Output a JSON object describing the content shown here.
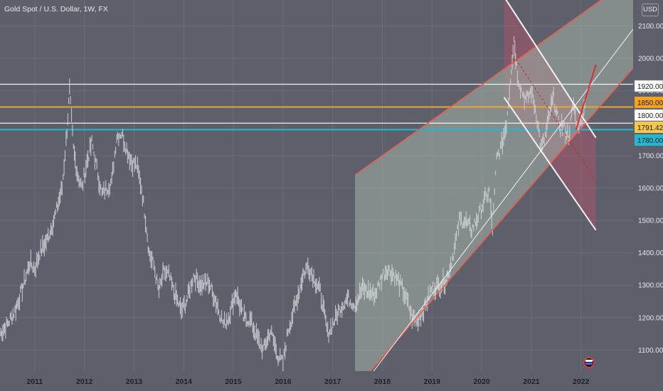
{
  "header": {
    "title": "Gold Spot / U.S. Dollar, 1W, FX",
    "currency": "USD"
  },
  "colors": {
    "background": "#5d606b",
    "axis_panel": "#5d606b",
    "candles": "#cfd1d6",
    "orange_level": "#f7a21b",
    "cyan_level": "#22b8cf",
    "white_level": "#f2f2f2",
    "channel_red": "#f05a4a",
    "channel_fill": "#a4b1a7",
    "wedge_fill": "#a8546a"
  },
  "chart_data": {
    "type": "line",
    "title": "Gold Spot / U.S. Dollar, 1W, FX",
    "x_ticks": [
      "2011",
      "2012",
      "2013",
      "2014",
      "2015",
      "2016",
      "2017",
      "2018",
      "2019",
      "2020",
      "2021",
      "2022"
    ],
    "y_ticks": [
      "1100.00",
      "1200.00",
      "1300.00",
      "1400.00",
      "1500.00",
      "1600.00",
      "1700.00",
      "1900.00",
      "2000.00",
      "2100.00"
    ],
    "xlim": [
      2010.3,
      2023.05
    ],
    "ylim": [
      1035,
      2180
    ],
    "grid": true,
    "series": [
      {
        "x": [
          2010.3,
          2010.45,
          2010.6,
          2010.75,
          2010.9,
          2011.0,
          2011.1,
          2011.25,
          2011.4,
          2011.55,
          2011.65,
          2011.7,
          2011.78,
          2011.85,
          2011.95,
          2012.05,
          2012.15,
          2012.25,
          2012.35,
          2012.45,
          2012.55,
          2012.65,
          2012.75,
          2012.85,
          2012.95,
          2013.05,
          2013.15,
          2013.25,
          2013.3,
          2013.4,
          2013.5,
          2013.6,
          2013.7,
          2013.8,
          2013.95,
          2014.05,
          2014.2,
          2014.35,
          2014.5,
          2014.65,
          2014.8,
          2014.9,
          2015.05,
          2015.2,
          2015.35,
          2015.5,
          2015.6,
          2015.75,
          2015.9,
          2016.0,
          2016.1,
          2016.25,
          2016.4,
          2016.5,
          2016.6,
          2016.75,
          2016.9,
          2017.0,
          2017.15,
          2017.3,
          2017.45,
          2017.6,
          2017.7,
          2017.85,
          2018.0,
          2018.1,
          2018.25,
          2018.4,
          2018.5,
          2018.6,
          2018.7,
          2018.85,
          2019.0,
          2019.15,
          2019.3,
          2019.45,
          2019.55,
          2019.65,
          2019.8,
          2019.95,
          2020.05,
          2020.15,
          2020.22,
          2020.3,
          2020.4,
          2020.5,
          2020.58,
          2020.65,
          2020.72,
          2020.8,
          2020.9,
          2021.0,
          2021.1,
          2021.2,
          2021.28,
          2021.38,
          2021.45,
          2021.55,
          2021.65,
          2021.75,
          2021.85,
          2021.92,
          2022.0,
          2022.08
        ],
        "y": [
          1150,
          1180,
          1220,
          1290,
          1370,
          1350,
          1400,
          1440,
          1510,
          1600,
          1780,
          1900,
          1720,
          1650,
          1600,
          1680,
          1740,
          1660,
          1580,
          1600,
          1620,
          1760,
          1770,
          1720,
          1680,
          1670,
          1600,
          1480,
          1400,
          1360,
          1280,
          1340,
          1330,
          1280,
          1220,
          1250,
          1330,
          1300,
          1310,
          1250,
          1180,
          1200,
          1280,
          1200,
          1190,
          1130,
          1100,
          1160,
          1080,
          1060,
          1160,
          1240,
          1330,
          1360,
          1330,
          1280,
          1150,
          1180,
          1230,
          1260,
          1240,
          1290,
          1280,
          1270,
          1330,
          1350,
          1330,
          1290,
          1250,
          1200,
          1190,
          1230,
          1290,
          1300,
          1320,
          1410,
          1500,
          1500,
          1470,
          1520,
          1560,
          1590,
          1470,
          1690,
          1730,
          1800,
          1940,
          2060,
          1950,
          1900,
          1870,
          1900,
          1830,
          1720,
          1760,
          1840,
          1880,
          1800,
          1790,
          1760,
          1860,
          1790,
          1800,
          1860
        ]
      }
    ],
    "horizontal_levels": [
      {
        "value": 1920,
        "label": "1920.00",
        "color": "#f2f2f2"
      },
      {
        "value": 1850,
        "label": "1850.00",
        "color": "#f7a21b"
      },
      {
        "value": 1800,
        "label": "1800.00",
        "color": "#f2f2f2"
      },
      {
        "value": 1791.42,
        "label": "1791.42",
        "color": "#f2c94c"
      },
      {
        "value": 1780,
        "label": "1780.00",
        "color": "#22b8cf"
      }
    ],
    "drawings": {
      "ascending_channel": {
        "upper": [
          [
            2017.45,
            1640
          ],
          [
            2023.05,
            2250
          ]
        ],
        "lower": [
          [
            2017.45,
            980
          ],
          [
            2023.05,
            1970
          ]
        ],
        "fill_start_x": 2017.45
      },
      "descending_wedge": {
        "upper": [
          [
            2020.45,
            2190
          ],
          [
            2022.3,
            1755
          ]
        ],
        "lower": [
          [
            2020.45,
            1880
          ],
          [
            2022.3,
            1470
          ]
        ]
      },
      "breakout_arrow": [
        [
          2021.9,
          1780
        ],
        [
          2022.3,
          1980
        ]
      ]
    }
  }
}
